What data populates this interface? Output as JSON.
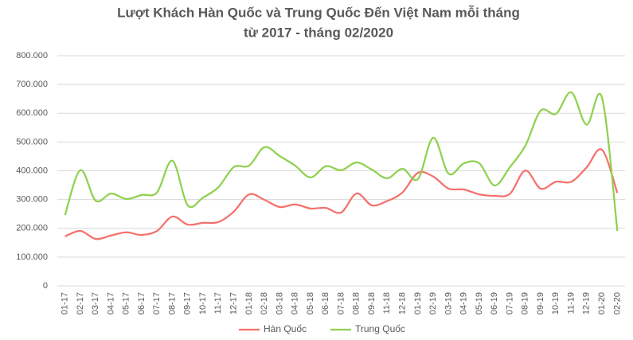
{
  "chart_data": {
    "type": "line",
    "title": [
      "Lượt Khách Hàn Quốc và Trung Quốc  Đến Việt Nam mỗi tháng",
      "từ 2017 - tháng 02/2020"
    ],
    "categories": [
      "01-17",
      "02-17",
      "03-17",
      "04-17",
      "05-17",
      "06-17",
      "07-17",
      "08-17",
      "09-17",
      "10-17",
      "11-17",
      "12-17",
      "01-18",
      "02-18",
      "03-18",
      "04-18",
      "05-18",
      "06-18",
      "07-18",
      "08-18",
      "09-18",
      "11-18",
      "12-18",
      "01-19",
      "02-19",
      "03-19",
      "04-19",
      "05-19",
      "06-19",
      "07-19",
      "08-19",
      "09-19",
      "10-19",
      "11-19",
      "12-19",
      "01-20",
      "02-20"
    ],
    "series": [
      {
        "name": "Hàn Quốc",
        "color": "#f4716c",
        "values": [
          172000,
          191000,
          163000,
          175000,
          186000,
          177000,
          191000,
          241000,
          213000,
          219000,
          222000,
          258000,
          318000,
          299000,
          274000,
          283000,
          269000,
          271000,
          255000,
          321000,
          280000,
          295000,
          325000,
          393000,
          380000,
          338000,
          335000,
          318000,
          313000,
          320000,
          401000,
          338000,
          362000,
          362000,
          412000,
          473000,
          323000
        ]
      },
      {
        "name": "Trung Quốc",
        "color": "#8fd14f",
        "values": [
          246000,
          402000,
          296000,
          321000,
          302000,
          316000,
          325000,
          435000,
          280000,
          307000,
          343000,
          413000,
          418000,
          482000,
          451000,
          418000,
          377000,
          416000,
          402000,
          429000,
          404000,
          374000,
          407000,
          371000,
          515000,
          390000,
          426000,
          426000,
          349000,
          413000,
          487000,
          609000,
          598000,
          673000,
          560000,
          654000,
          191000
        ]
      }
    ],
    "ylim": [
      0,
      800000
    ],
    "yticks": [
      0,
      {
        "value": 100000,
        "label": "100.000"
      },
      {
        "value": 200000,
        "label": "200.000"
      },
      {
        "value": 300000,
        "label": "300.000"
      },
      {
        "value": 400000,
        "label": "400.000"
      },
      {
        "value": 500000,
        "label": "500.000"
      },
      {
        "value": 600000,
        "label": "600.000"
      },
      {
        "value": 700000,
        "label": "700.000"
      },
      {
        "value": 800000,
        "label": "800.000"
      }
    ],
    "grid": true,
    "legend": "bottom"
  }
}
